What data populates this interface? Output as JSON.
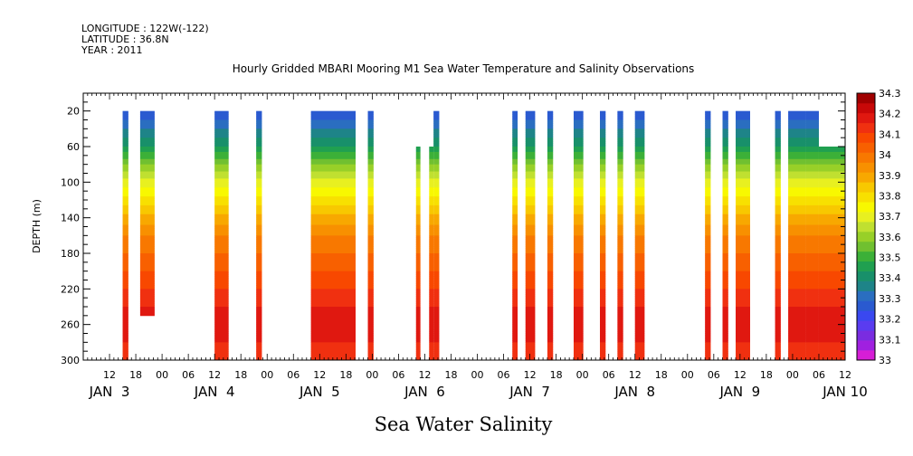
{
  "chart_data": {
    "type": "heatmap",
    "title": "Hourly Gridded MBARI Mooring M1 Sea Water Temperature and Salinity Observations",
    "header_lines": [
      "LONGITUDE : 122W(-122)",
      "LATITUDE : 36.8N",
      "YEAR : 2011"
    ],
    "ylabel": "DEPTH (m)",
    "xlabel_bottom": "Sea Water Salinity",
    "y_ticks": [
      20,
      60,
      100,
      140,
      180,
      220,
      260,
      300
    ],
    "ylim": [
      300,
      0
    ],
    "xlim_hours": [
      6,
      180
    ],
    "x_hour_labels": [
      "12",
      "18",
      "00",
      "06",
      "12",
      "18",
      "00",
      "06",
      "12",
      "18",
      "00",
      "06",
      "12",
      "18",
      "00",
      "06",
      "12",
      "18",
      "00",
      "06",
      "12",
      "18",
      "00",
      "06",
      "12",
      "18",
      "00",
      "06",
      "12"
    ],
    "x_day_labels": [
      {
        "label": "JAN  3",
        "hour": 12
      },
      {
        "label": "JAN  4",
        "hour": 36
      },
      {
        "label": "JAN  5",
        "hour": 60
      },
      {
        "label": "JAN  6",
        "hour": 84
      },
      {
        "label": "JAN  7",
        "hour": 108
      },
      {
        "label": "JAN  8",
        "hour": 132
      },
      {
        "label": "JAN  9",
        "hour": 156
      },
      {
        "label": "JAN 10",
        "hour": 180
      }
    ],
    "colorbar": {
      "labels": [
        "34.3",
        "34.2",
        "34.1",
        "34",
        "33.9",
        "33.8",
        "33.7",
        "33.6",
        "33.5",
        "33.4",
        "33.3",
        "33.2",
        "33.1",
        "33"
      ],
      "levels": [
        33.0,
        33.05,
        33.1,
        33.15,
        33.2,
        33.25,
        33.3,
        33.35,
        33.4,
        33.45,
        33.5,
        33.55,
        33.6,
        33.65,
        33.7,
        33.75,
        33.8,
        33.85,
        33.9,
        33.95,
        34.0,
        34.05,
        34.1,
        34.15,
        34.2,
        34.25,
        34.3,
        34.35
      ],
      "colors": [
        "#d61ed6",
        "#a020e0",
        "#7a2ce0",
        "#5a3cf0",
        "#3a48f0",
        "#2a5ad0",
        "#2a6ec0",
        "#1e8488",
        "#18906a",
        "#20a050",
        "#3cb038",
        "#70c030",
        "#98d028",
        "#c0e030",
        "#e8f020",
        "#f8f800",
        "#f8e000",
        "#f8c800",
        "#f8a800",
        "#f89000",
        "#f87800",
        "#f86000",
        "#f84800",
        "#f03010",
        "#e01810",
        "#c80808",
        "#a00000"
      ]
    },
    "salinity_profile": {
      "depths": [
        20,
        40,
        60,
        80,
        100,
        120,
        140,
        160,
        180,
        200,
        220,
        240,
        260,
        280,
        300
      ],
      "values": [
        33.25,
        33.35,
        33.45,
        33.6,
        33.72,
        33.82,
        33.92,
        34.0,
        34.05,
        34.1,
        34.15,
        34.2,
        34.25,
        34.2,
        34.15
      ]
    },
    "segments": [
      {
        "start": 15,
        "end": 16.3,
        "top": 20,
        "bottom": 300
      },
      {
        "start": 19,
        "end": 22.3,
        "top": 20,
        "bottom": 250
      },
      {
        "start": 36,
        "end": 39.2,
        "top": 20,
        "bottom": 300
      },
      {
        "start": 45.5,
        "end": 46.8,
        "top": 20,
        "bottom": 300
      },
      {
        "start": 58,
        "end": 68.2,
        "top": 20,
        "bottom": 300
      },
      {
        "start": 71,
        "end": 72.3,
        "top": 20,
        "bottom": 300
      },
      {
        "start": 82,
        "end": 83,
        "top": 60,
        "bottom": 300
      },
      {
        "start": 85,
        "end": 86,
        "top": 60,
        "bottom": 300
      },
      {
        "start": 86,
        "end": 87.3,
        "top": 20,
        "bottom": 300
      },
      {
        "start": 104,
        "end": 105.2,
        "top": 20,
        "bottom": 300
      },
      {
        "start": 107,
        "end": 109.2,
        "top": 20,
        "bottom": 300
      },
      {
        "start": 112,
        "end": 113.3,
        "top": 20,
        "bottom": 300
      },
      {
        "start": 118,
        "end": 120.2,
        "top": 20,
        "bottom": 300
      },
      {
        "start": 124,
        "end": 125.3,
        "top": 20,
        "bottom": 300
      },
      {
        "start": 128,
        "end": 129.3,
        "top": 20,
        "bottom": 300
      },
      {
        "start": 132,
        "end": 134.2,
        "top": 20,
        "bottom": 300
      },
      {
        "start": 148,
        "end": 149.3,
        "top": 20,
        "bottom": 300
      },
      {
        "start": 152,
        "end": 153.3,
        "top": 20,
        "bottom": 300
      },
      {
        "start": 155,
        "end": 158.3,
        "top": 20,
        "bottom": 300
      },
      {
        "start": 164,
        "end": 165.3,
        "top": 20,
        "bottom": 300
      },
      {
        "start": 167,
        "end": 171,
        "top": 20,
        "bottom": 300
      },
      {
        "start": 171,
        "end": 174,
        "top": 20,
        "bottom": 300
      },
      {
        "start": 174,
        "end": 180,
        "top": 60,
        "bottom": 300
      }
    ]
  }
}
